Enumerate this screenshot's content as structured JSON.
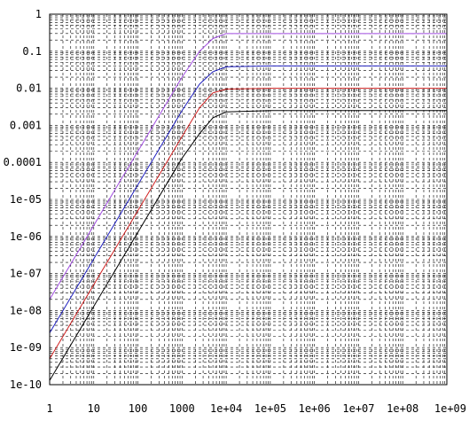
{
  "chart_data": {
    "type": "line",
    "title": "",
    "xlabel": "",
    "ylabel": "",
    "x_scale": "log",
    "y_scale": "log",
    "xlim": [
      1,
      1000000000
    ],
    "ylim": [
      1e-10,
      1
    ],
    "grid": true,
    "legend": "none",
    "x_tick_labels": [
      "1",
      "10",
      "100",
      "1000",
      "1e+04",
      "1e+05",
      "1e+06",
      "1e+07",
      "1e+08",
      "1e+09"
    ],
    "y_tick_labels": [
      "1",
      "0.1",
      "0.01",
      "0.001",
      "0.0001",
      "1e-05",
      "1e-06",
      "1e-07",
      "1e-08",
      "1e-09",
      "1e-10"
    ],
    "series": [
      {
        "color": "#a04ce0",
        "x": [
          1,
          10,
          100,
          1000,
          2500,
          5000,
          10000,
          100000,
          1000000,
          10000000,
          100000000,
          1000000000
        ],
        "y": [
          2e-08,
          2e-06,
          0.0002,
          0.02,
          0.1,
          0.22,
          0.3,
          0.3,
          0.3,
          0.3,
          0.3,
          0.3
        ]
      },
      {
        "color": "#2020c0",
        "x": [
          1,
          10,
          100,
          1000,
          2500,
          5000,
          10000,
          100000,
          1000000,
          10000000,
          100000000,
          1000000000
        ],
        "y": [
          2.5e-09,
          2.5e-07,
          2.5e-05,
          0.0025,
          0.013,
          0.028,
          0.038,
          0.04,
          0.04,
          0.04,
          0.04,
          0.04
        ]
      },
      {
        "color": "#d02020",
        "x": [
          1,
          10,
          100,
          1000,
          2500,
          5000,
          10000,
          100000,
          1000000,
          10000000,
          100000000,
          1000000000
        ],
        "y": [
          5e-10,
          5e-08,
          5e-06,
          0.0005,
          0.003,
          0.0075,
          0.0095,
          0.01,
          0.01,
          0.01,
          0.01,
          0.01
        ]
      },
      {
        "color": "#000000",
        "x": [
          1,
          10,
          100,
          1000,
          2500,
          5000,
          10000,
          100000,
          1000000,
          10000000,
          100000000,
          1000000000
        ],
        "y": [
          1.3e-10,
          1.3e-08,
          1.3e-06,
          0.00013,
          0.0006,
          0.0016,
          0.0023,
          0.0025,
          0.0025,
          0.0025,
          0.0025,
          0.0025
        ]
      }
    ]
  }
}
